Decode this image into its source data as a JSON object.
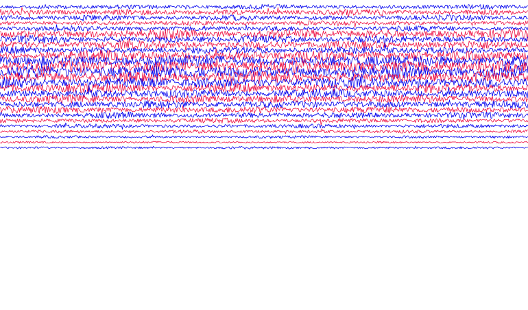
{
  "colors": {
    "background": "#ffffff",
    "series_a": "#0000ee",
    "series_b": "#ee1144"
  },
  "chart_data": {
    "type": "line",
    "description_kind": "helicorder-style stacked waveform traces",
    "title": "",
    "xlabel": "",
    "ylabel": "",
    "grid": false,
    "legend": "none",
    "color_cycle": [
      "#0000ee",
      "#ee1144"
    ],
    "trace_count": 27,
    "samples_per_trace": 700,
    "traces": [
      {
        "index": 0,
        "color": "#0000ee",
        "amplitude": 0.35
      },
      {
        "index": 1,
        "color": "#ee1144",
        "amplitude": 0.45
      },
      {
        "index": 2,
        "color": "#0000ee",
        "amplitude": 0.4
      },
      {
        "index": 3,
        "color": "#ee1144",
        "amplitude": 0.35
      },
      {
        "index": 4,
        "color": "#0000ee",
        "amplitude": 0.4
      },
      {
        "index": 5,
        "color": "#ee1144",
        "amplitude": 0.7
      },
      {
        "index": 6,
        "color": "#0000ee",
        "amplitude": 0.55
      },
      {
        "index": 7,
        "color": "#ee1144",
        "amplitude": 0.6
      },
      {
        "index": 8,
        "color": "#0000ee",
        "amplitude": 0.55
      },
      {
        "index": 9,
        "color": "#ee1144",
        "amplitude": 0.75
      },
      {
        "index": 10,
        "color": "#0000ee",
        "amplitude": 0.9
      },
      {
        "index": 11,
        "color": "#ee1144",
        "amplitude": 0.95
      },
      {
        "index": 12,
        "color": "#0000ee",
        "amplitude": 1.0
      },
      {
        "index": 13,
        "color": "#ee1144",
        "amplitude": 0.85
      },
      {
        "index": 14,
        "color": "#0000ee",
        "amplitude": 0.8
      },
      {
        "index": 15,
        "color": "#ee1144",
        "amplitude": 0.7
      },
      {
        "index": 16,
        "color": "#0000ee",
        "amplitude": 0.65
      },
      {
        "index": 17,
        "color": "#ee1144",
        "amplitude": 0.6
      },
      {
        "index": 18,
        "color": "#0000ee",
        "amplitude": 0.55
      },
      {
        "index": 19,
        "color": "#ee1144",
        "amplitude": 0.5
      },
      {
        "index": 20,
        "color": "#0000ee",
        "amplitude": 0.45
      },
      {
        "index": 21,
        "color": "#ee1144",
        "amplitude": 0.35
      },
      {
        "index": 22,
        "color": "#0000ee",
        "amplitude": 0.3
      },
      {
        "index": 23,
        "color": "#ee1144",
        "amplitude": 0.25
      },
      {
        "index": 24,
        "color": "#0000ee",
        "amplitude": 0.2
      },
      {
        "index": 25,
        "color": "#ee1144",
        "amplitude": 0.15
      },
      {
        "index": 26,
        "color": "#0000ee",
        "amplitude": 0.18
      }
    ]
  }
}
